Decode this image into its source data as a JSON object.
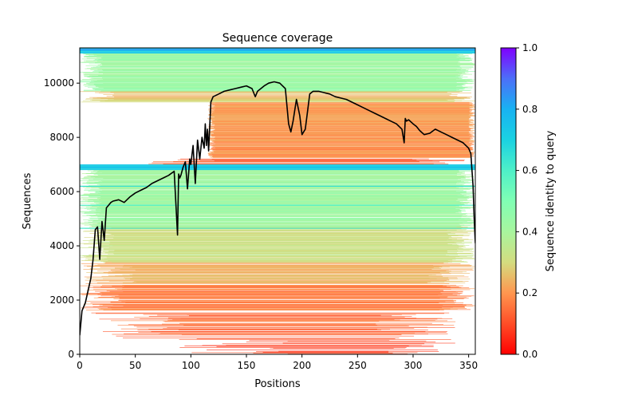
{
  "chart_data": {
    "type": "heatmap",
    "title": "Sequence coverage",
    "xlabel": "Positions",
    "ylabel": "Sequences",
    "xlim": [
      0,
      356
    ],
    "ylim": [
      0,
      11300
    ],
    "xticks": [
      0,
      50,
      100,
      150,
      200,
      250,
      300,
      350
    ],
    "yticks": [
      0,
      2000,
      4000,
      6000,
      8000,
      10000
    ],
    "grid": false,
    "colorbar": {
      "label": "Sequence identity to query",
      "range": [
        0.0,
        1.0
      ],
      "ticks": [
        "0.0",
        "0.2",
        "0.4",
        "0.6",
        "0.8",
        "1.0"
      ],
      "colormap": "rainbow_r",
      "placement": "right"
    },
    "coverage_bands": [
      {
        "y_from": 0,
        "y_to": 600,
        "identity": 0.08,
        "x_from": 80,
        "x_to": 356,
        "density": 0.35
      },
      {
        "y_from": 600,
        "y_to": 1600,
        "identity": 0.14,
        "x_from": 10,
        "x_to": 340,
        "density": 0.55
      },
      {
        "y_from": 1600,
        "y_to": 2600,
        "identity": 0.17,
        "x_from": 0,
        "x_to": 356,
        "density": 0.8
      },
      {
        "y_from": 2600,
        "y_to": 3400,
        "identity": 0.24,
        "x_from": 0,
        "x_to": 356,
        "density": 0.75
      },
      {
        "y_from": 3400,
        "y_to": 4700,
        "identity": 0.32,
        "x_from": 0,
        "x_to": 356,
        "density": 0.85
      },
      {
        "y_from": 4700,
        "y_to": 6800,
        "identity": 0.42,
        "x_from": 0,
        "x_to": 356,
        "density": 0.9
      },
      {
        "y_from": 6800,
        "y_to": 7000,
        "identity": 0.72,
        "x_from": 0,
        "x_to": 356,
        "density": 1.0
      },
      {
        "y_from": 7000,
        "y_to": 7250,
        "identity": 0.12,
        "x_from": 60,
        "x_to": 356,
        "density": 0.6
      },
      {
        "y_from": 7250,
        "y_to": 9300,
        "identity": 0.2,
        "x_from": 115,
        "x_to": 356,
        "density": 0.95
      },
      {
        "y_from": 9300,
        "y_to": 9700,
        "identity": 0.27,
        "x_from": 0,
        "x_to": 356,
        "density": 0.85
      },
      {
        "y_from": 9700,
        "y_to": 11100,
        "identity": 0.43,
        "x_from": 0,
        "x_to": 356,
        "density": 0.9
      },
      {
        "y_from": 11100,
        "y_to": 11300,
        "identity": 0.72,
        "x_from": 0,
        "x_to": 356,
        "density": 1.0
      }
    ],
    "series": [
      {
        "name": "coverage",
        "color": "#000000",
        "x": [
          0,
          2,
          5,
          10,
          12,
          14,
          16,
          18,
          20,
          22,
          24,
          26,
          28,
          30,
          35,
          40,
          45,
          50,
          55,
          60,
          65,
          70,
          75,
          80,
          85,
          88,
          89,
          90,
          91,
          93,
          95,
          97,
          99,
          100,
          102,
          104,
          106,
          108,
          110,
          112,
          113,
          114,
          115,
          116,
          117,
          118,
          120,
          125,
          130,
          135,
          140,
          145,
          150,
          155,
          158,
          160,
          163,
          166,
          170,
          175,
          180,
          185,
          188,
          190,
          192,
          195,
          198,
          200,
          203,
          207,
          210,
          215,
          220,
          225,
          230,
          235,
          240,
          245,
          250,
          255,
          260,
          265,
          270,
          275,
          280,
          285,
          290,
          292,
          293,
          294,
          296,
          300,
          303,
          306,
          310,
          315,
          320,
          325,
          330,
          335,
          340,
          345,
          350,
          352,
          354,
          355,
          356
        ],
        "y": [
          700,
          1600,
          1900,
          2800,
          3500,
          4600,
          4700,
          3500,
          4900,
          4200,
          5400,
          5500,
          5600,
          5650,
          5700,
          5600,
          5800,
          5950,
          6050,
          6150,
          6300,
          6400,
          6500,
          6600,
          6750,
          4400,
          6650,
          6500,
          6600,
          6900,
          7100,
          6100,
          7200,
          7000,
          7700,
          6300,
          7900,
          7200,
          8000,
          7600,
          8500,
          7700,
          8300,
          7500,
          8400,
          9300,
          9500,
          9600,
          9700,
          9750,
          9800,
          9850,
          9900,
          9800,
          9500,
          9700,
          9800,
          9900,
          10000,
          10050,
          10000,
          9800,
          8500,
          8200,
          8600,
          9400,
          8800,
          8100,
          8300,
          9600,
          9700,
          9700,
          9650,
          9600,
          9500,
          9450,
          9400,
          9300,
          9200,
          9100,
          9000,
          8900,
          8800,
          8700,
          8600,
          8500,
          8300,
          7800,
          8700,
          8600,
          8650,
          8500,
          8400,
          8250,
          8100,
          8150,
          8300,
          8200,
          8100,
          8000,
          7900,
          7800,
          7600,
          7400,
          6200,
          5000,
          4100
        ]
      }
    ]
  }
}
